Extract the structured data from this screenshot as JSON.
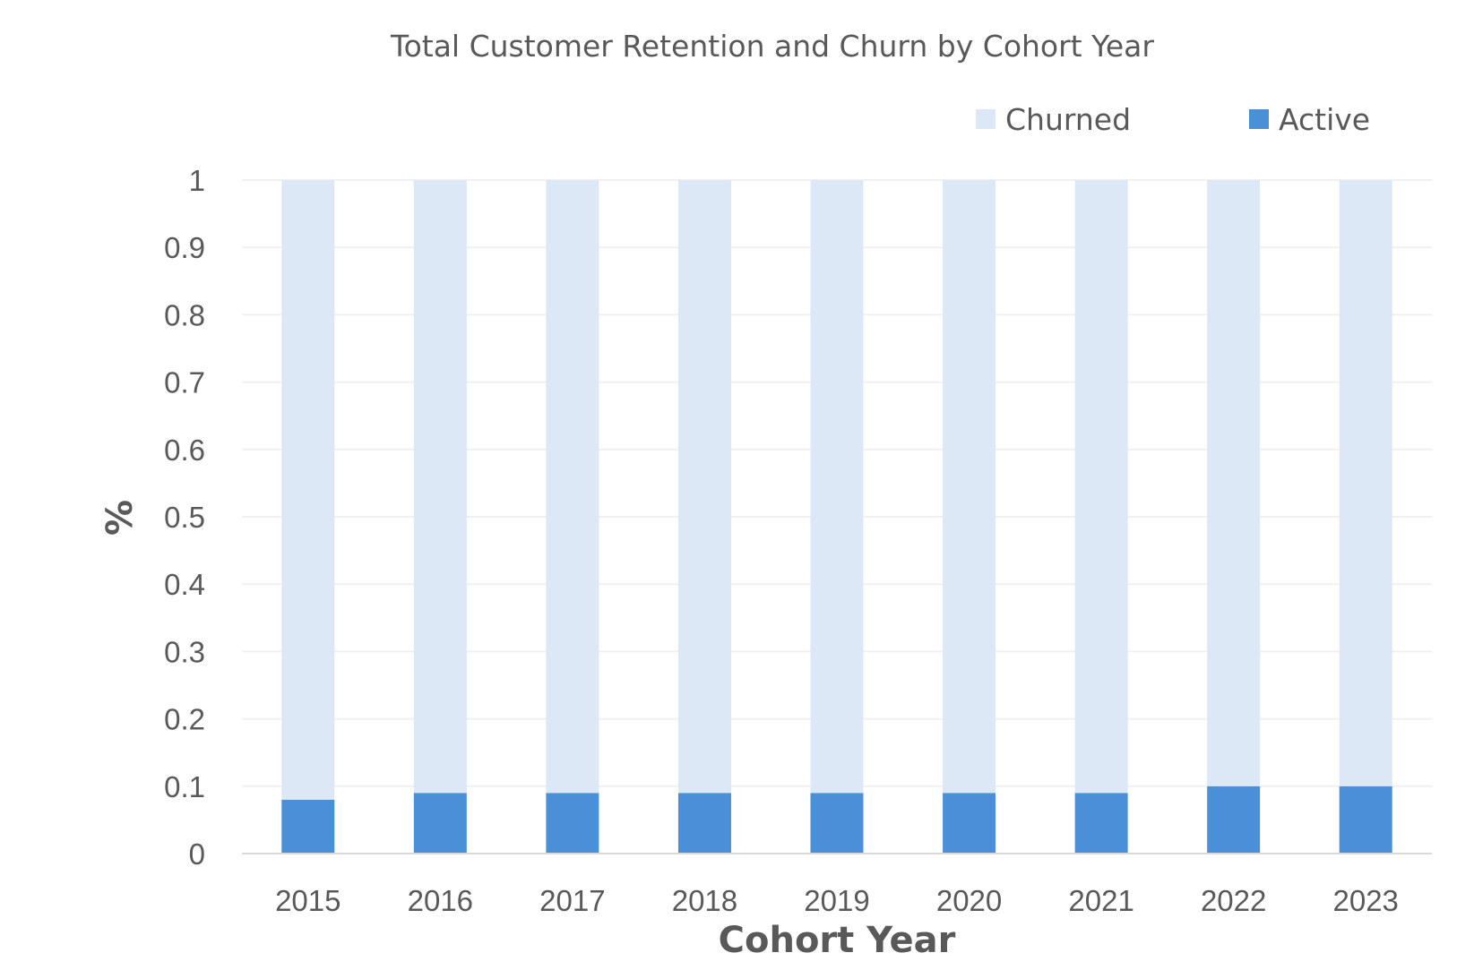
{
  "chart_data": {
    "type": "bar",
    "stacked": true,
    "title": "Total Customer Retention and Churn by Cohort Year",
    "xlabel": "Cohort Year",
    "ylabel": "%",
    "categories": [
      "2015",
      "2016",
      "2017",
      "2018",
      "2019",
      "2020",
      "2021",
      "2022",
      "2023"
    ],
    "series": [
      {
        "name": "Active",
        "color": "#4a90d9",
        "values": [
          0.08,
          0.09,
          0.09,
          0.09,
          0.09,
          0.09,
          0.09,
          0.1,
          0.1
        ]
      },
      {
        "name": "Churned",
        "color": "#dce8f5",
        "values": [
          0.92,
          0.91,
          0.91,
          0.91,
          0.91,
          0.91,
          0.91,
          0.9,
          0.9
        ]
      }
    ],
    "legend_order": [
      "Churned",
      "Active"
    ],
    "ylim": [
      0,
      1
    ],
    "yticks": [
      "0",
      "0.1",
      "0.2",
      "0.3",
      "0.4",
      "0.5",
      "0.6",
      "0.7",
      "0.8",
      "0.9",
      "1"
    ],
    "grid": true,
    "legend_position": "top-right",
    "gridline_color": "#f0f0f0",
    "axis_color": "#d9d9d9"
  }
}
